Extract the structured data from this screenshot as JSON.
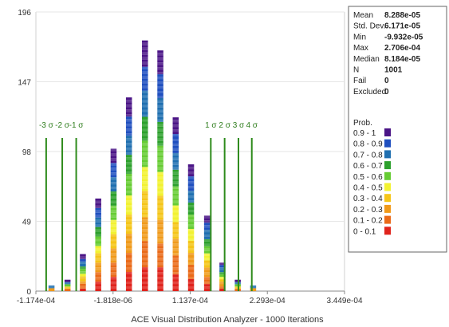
{
  "chart_data": {
    "type": "bar",
    "title": "ACE Visual Distribution Analyzer - 1000 Iterations",
    "xlim": [
      -0.0001174,
      0.0003449
    ],
    "ylim": [
      0,
      196
    ],
    "x_tick_labels": [
      "-1.174e-04",
      "-1.818e-06",
      "1.137e-04",
      "2.293e-04",
      "3.449e-04"
    ],
    "x_tick_values": [
      -0.0001174,
      -1.818e-06,
      0.0001137,
      0.0002293,
      0.0003449
    ],
    "y_tick_labels": [
      "0",
      "49",
      "98",
      "147",
      "196"
    ],
    "y_tick_values": [
      0,
      49,
      98,
      147,
      196
    ],
    "bin_width": 1e-05,
    "bins": [
      {
        "x": -9.4e-05,
        "count": 4
      },
      {
        "x": -7e-05,
        "count": 8
      },
      {
        "x": -4.7e-05,
        "count": 26
      },
      {
        "x": -2.4e-05,
        "count": 65
      },
      {
        "x": -1e-06,
        "count": 100
      },
      {
        "x": 2.2e-05,
        "count": 136
      },
      {
        "x": 4.6e-05,
        "count": 176
      },
      {
        "x": 6.9e-05,
        "count": 169
      },
      {
        "x": 9.2e-05,
        "count": 122
      },
      {
        "x": 0.000115,
        "count": 89
      },
      {
        "x": 0.000139,
        "count": 53
      },
      {
        "x": 0.000162,
        "count": 20
      },
      {
        "x": 0.000185,
        "count": 8
      },
      {
        "x": 0.000208,
        "count": 4
      }
    ],
    "sigma_lines": [
      {
        "label": "-3 σ",
        "x": -0.000102
      },
      {
        "label": "-2 σ",
        "x": -7.79e-05
      },
      {
        "label": "-1 σ",
        "x": -5.7e-05
      },
      {
        "label": "1 σ",
        "x": 0.0001446
      },
      {
        "label": "2 σ",
        "x": 0.0001653
      },
      {
        "label": "3 σ",
        "x": 0.000186
      },
      {
        "label": "4 σ",
        "x": 0.000206
      }
    ],
    "prob_legend_title": "Prob.",
    "prob_legend": [
      {
        "label": "0.9 - 1",
        "color": "#4a1486"
      },
      {
        "label": "0.8 - 0.9",
        "color": "#1f4fbf"
      },
      {
        "label": "0.7 - 0.8",
        "color": "#1f6fb0"
      },
      {
        "label": "0.6 - 0.7",
        "color": "#2ca02c"
      },
      {
        "label": "0.5 - 0.6",
        "color": "#66cc33"
      },
      {
        "label": "0.4 - 0.5",
        "color": "#f2f230"
      },
      {
        "label": "0.3 - 0.4",
        "color": "#f5c518"
      },
      {
        "label": "0.2 - 0.3",
        "color": "#f09a1a"
      },
      {
        "label": "0.1 - 0.2",
        "color": "#ea6a18"
      },
      {
        "label": "0 - 0.1",
        "color": "#e0231c"
      }
    ]
  },
  "stats": [
    {
      "label": "Mean",
      "value": "8.288e-05"
    },
    {
      "label": "Std. Dev.",
      "value": "6.171e-05"
    },
    {
      "label": "Min",
      "value": "-9.932e-05"
    },
    {
      "label": "Max",
      "value": "2.706e-04"
    },
    {
      "label": "Median",
      "value": "8.184e-05"
    },
    {
      "label": "N",
      "value": "1001"
    },
    {
      "label": "Fail",
      "value": "0"
    },
    {
      "label": "Excluded",
      "value": "0"
    }
  ],
  "caption": "ACE Visual Distribution Analyzer - 1000 Iterations"
}
